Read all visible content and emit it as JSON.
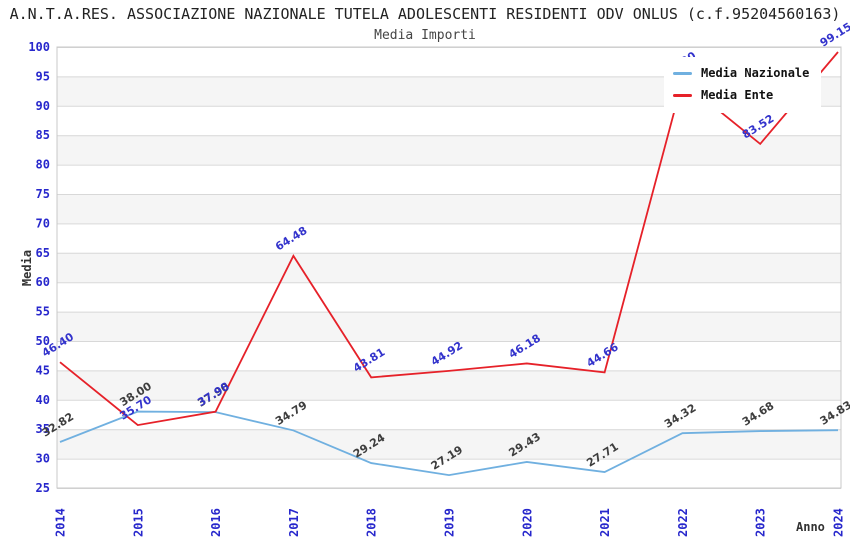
{
  "title": "A.N.T.A.RES. ASSOCIAZIONE NAZIONALE TUTELA ADOLESCENTI RESIDENTI ODV ONLUS (c.f.95204560163)",
  "subtitle": "Media Importi",
  "legend": {
    "position": "top-right-overlay",
    "items": [
      {
        "label": "Media Nazionale",
        "color": "#70b0e0"
      },
      {
        "label": "Media Ente",
        "color": "#e62129"
      }
    ]
  },
  "chart_data": {
    "type": "line",
    "x": [
      2014,
      2015,
      2016,
      2017,
      2018,
      2019,
      2020,
      2021,
      2022,
      2023,
      2024
    ],
    "xlabel": "Anno",
    "ylabel": "Media",
    "ylim": [
      25,
      100
    ],
    "ytick_step": 5,
    "grid": "horizontal-with-alternating-bands",
    "series": [
      {
        "name": "Media Nazionale",
        "color": "#70b0e0",
        "label_color": "#3d3d3d",
        "values": [
          32.82,
          38.0,
          37.9,
          34.79,
          29.24,
          27.19,
          29.43,
          27.71,
          34.32,
          34.68,
          34.83
        ]
      },
      {
        "name": "Media Ente",
        "color": "#e62129",
        "label_color": "#3333cc",
        "values": [
          46.4,
          35.7,
          37.98,
          64.48,
          43.81,
          44.92,
          46.18,
          44.66,
          94.2,
          83.52,
          99.15
        ],
        "label_hidden_by_legend_at_x": 2022,
        "note_2022_value_estimated_from_line": true
      }
    ],
    "colors": {
      "tick_label": "#2727cc",
      "point_label_nazionale": "#3d3d3d",
      "point_label_ente": "#3333cc",
      "gridline": "#d8d8d8",
      "band": "#f5f5f5",
      "plot_border": "#c8c8c8",
      "title_text": "#222222",
      "subtitle_text": "#454545"
    }
  }
}
